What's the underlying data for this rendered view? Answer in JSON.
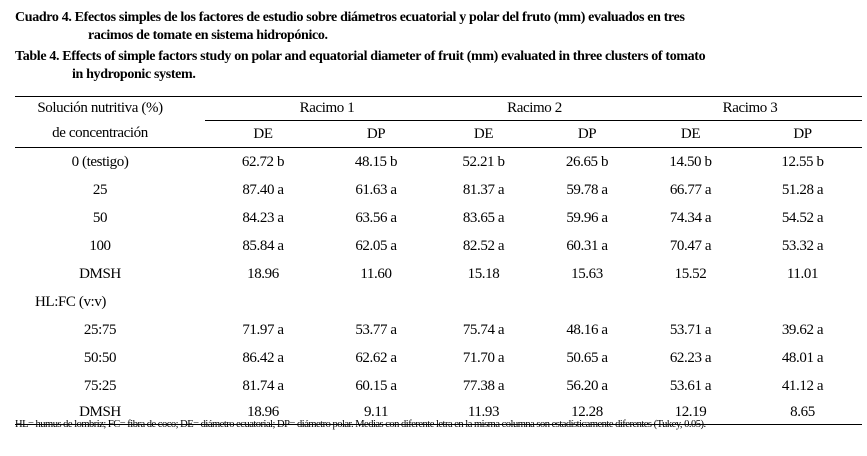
{
  "caption_es": {
    "line1": "Cuadro 4. Efectos simples de los factores de estudio sobre diámetros ecuatorial y polar del fruto (mm) evaluados en tres",
    "line2": "racimos de tomate en sistema hidropónico."
  },
  "caption_en": {
    "line1": "Table 4. Effects of simple factors study on polar and equatorial diameter of fruit (mm) evaluated in three clusters of tomato",
    "line2": "in hydroponic system."
  },
  "header": {
    "factor_line1": "Solución nutritiva (%)",
    "factor_line2": "de concentración",
    "groups": [
      "Racimo 1",
      "Racimo 2",
      "Racimo 3"
    ],
    "subcols": [
      "DE",
      "DP",
      "DE",
      "DP",
      "DE",
      "DP"
    ]
  },
  "rows": [
    {
      "label": "0 (testigo)",
      "values": [
        "62.72 b",
        "48.15 b",
        "52.21 b",
        "26.65 b",
        "14.50 b",
        "12.55 b"
      ]
    },
    {
      "label": "25",
      "values": [
        "87.40 a",
        "61.63 a",
        "81.37 a",
        "59.78 a",
        "66.77 a",
        "51.28 a"
      ]
    },
    {
      "label": "50",
      "values": [
        "84.23 a",
        "63.56 a",
        "83.65 a",
        "59.96 a",
        "74.34 a",
        "54.52 a"
      ]
    },
    {
      "label": "100",
      "values": [
        "85.84 a",
        "62.05 a",
        "82.52 a",
        "60.31 a",
        "70.47 a",
        "53.32 a"
      ]
    },
    {
      "label": "DMSH",
      "values": [
        "18.96",
        "11.60",
        "15.18",
        "15.63",
        "15.52",
        "11.01"
      ]
    },
    {
      "label": "HL:FC (v:v)",
      "section": true,
      "values": []
    },
    {
      "label": "25:75",
      "values": [
        "71.97 a",
        "53.77 a",
        "75.74 a",
        "48.16 a",
        "53.71 a",
        "39.62 a"
      ]
    },
    {
      "label": "50:50",
      "values": [
        "86.42 a",
        "62.62 a",
        "71.70 a",
        "50.65 a",
        "62.23 a",
        "48.01 a"
      ]
    },
    {
      "label": "75:25",
      "values": [
        "81.74 a",
        "60.15 a",
        "77.38 a",
        "56.20 a",
        "53.61 a",
        "41.12 a"
      ]
    },
    {
      "label": "DMSH",
      "values": [
        "18.96",
        "9.11",
        "11.93",
        "12.28",
        "12.19",
        "8.65"
      ]
    }
  ],
  "footnote": "HL= humus de lombriz; FC= fibra de coco; DE= diámetro ecuatorial; DP= diámetro polar. Medias con diferente letra en la misma columna son estadísticamente diferentes (Tukey, 0.05)."
}
